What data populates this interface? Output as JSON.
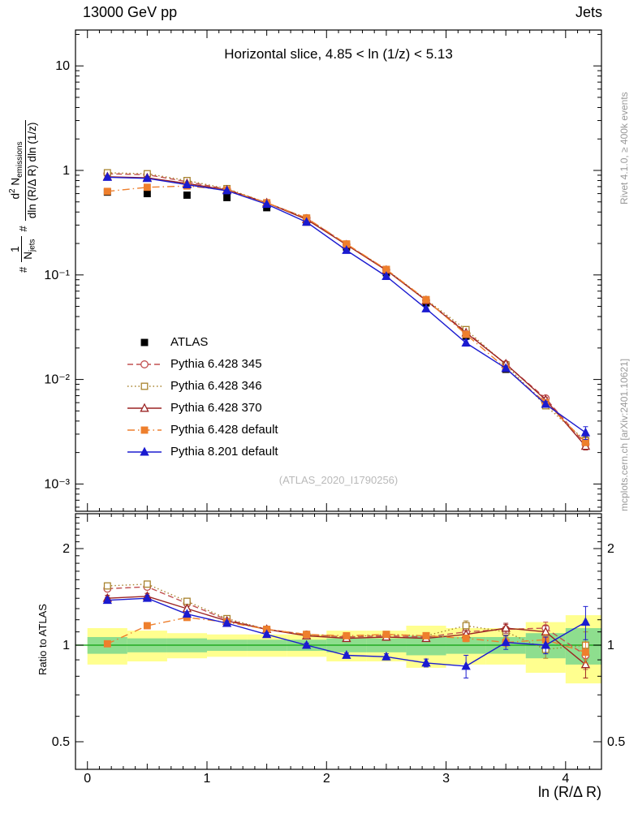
{
  "header": {
    "left": "13000 GeV pp",
    "right": "Jets"
  },
  "panel_title": "Horizontal slice, 4.85 < ln (1/z) < 5.13",
  "watermark": "(ATLAS_2020_I1790256)",
  "side_notes": {
    "rivet": "Rivet 4.1.0, ≥ 400k events",
    "mcplots": "mcplots.cern.ch [arXiv:2401.10621]"
  },
  "axis_labels": {
    "x": "ln (R/Δ R)",
    "ratio_y": "Ratio to ATLAS",
    "main_y": {
      "hash1": "#",
      "frac1_num": "1",
      "frac1_den_base": "N",
      "frac1_den_sub": "jets",
      "hash2": "#",
      "frac2_num_base": "d",
      "frac2_num_sup": "2",
      "frac2_num_base2": " N",
      "frac2_num_sub": "emissions",
      "frac2_den": "dln (R/Δ R) dln (1/z)"
    }
  },
  "chart_data": {
    "type": "line",
    "title": "Horizontal slice, 4.85 < ln (1/z) < 5.13",
    "xlabel": "ln (R/Δ R)",
    "ylabel": "1/N_jets d²N_emissions / (dln (R/Δ R) dln (1/z))",
    "ratio_ylabel": "Ratio to ATLAS",
    "y_scale": "log",
    "grid": false,
    "legend_position": "inside-middle-left",
    "x_range": [
      -0.1,
      4.3
    ],
    "y_range_main": [
      0.00055,
      22
    ],
    "y_range_ratio": [
      0.41,
      2.57
    ],
    "x": [
      0.167,
      0.5,
      0.833,
      1.167,
      1.5,
      1.833,
      2.167,
      2.5,
      2.833,
      3.167,
      3.5,
      3.833,
      4.167
    ],
    "xticks": [
      {
        "value": 0,
        "label": "0"
      },
      {
        "value": 1,
        "label": "1"
      },
      {
        "value": 2,
        "label": "2"
      },
      {
        "value": 3,
        "label": "3"
      },
      {
        "value": 4,
        "label": "4"
      }
    ],
    "yticks_main": [
      {
        "value": 10,
        "label": "10"
      },
      {
        "value": 1,
        "label": "1"
      },
      {
        "value": 0.1,
        "label": "10⁻¹"
      },
      {
        "value": 0.01,
        "label": "10⁻²"
      },
      {
        "value": 0.001,
        "label": "10⁻³"
      }
    ],
    "yticks_ratio": [
      {
        "value": 2,
        "label": "2"
      },
      {
        "value": 1,
        "label": "1"
      },
      {
        "value": 0.5,
        "label": "0.5"
      }
    ],
    "ratio_ticks_minor": [
      0.6,
      0.7,
      0.8,
      0.9,
      1.1,
      1.2,
      1.3,
      1.4,
      1.5,
      1.6,
      1.7,
      1.8,
      1.9,
      2.1,
      2.2,
      2.3,
      2.4,
      2.5
    ],
    "series": [
      {
        "name": "ATLAS",
        "marker": "square",
        "filled": true,
        "color": "#000000",
        "line": "none",
        "values": [
          0.62,
          0.6,
          0.58,
          0.55,
          0.44,
          0.32,
          0.185,
          0.105,
          0.054,
          0.026,
          0.0125,
          0.0058,
          0.0026
        ],
        "err_rel": [
          0.02,
          0.02,
          0.02,
          0.02,
          0.02,
          0.02,
          0.02,
          0.02,
          0.025,
          0.03,
          0.04,
          0.05,
          0.08
        ],
        "ratio": null,
        "ratio_err": null
      },
      {
        "name": "Pythia 6.428 345",
        "marker": "circle",
        "filled": false,
        "color": "#c25050",
        "line": "dashed",
        "values": [
          0.93,
          0.91,
          0.78,
          0.66,
          0.49,
          0.35,
          0.196,
          0.112,
          0.057,
          0.0286,
          0.014,
          0.0066,
          0.0024
        ],
        "err_rel": [
          0.03,
          0.03,
          0.02,
          0.02,
          0.015,
          0.015,
          0.015,
          0.02,
          0.02,
          0.03,
          0.04,
          0.05,
          0.09
        ],
        "ratio": [
          1.5,
          1.52,
          1.35,
          1.2,
          1.12,
          1.08,
          1.06,
          1.07,
          1.06,
          1.1,
          1.12,
          1.13,
          0.93
        ],
        "ratio_err": [
          0.03,
          0.03,
          0.02,
          0.02,
          0.015,
          0.015,
          0.015,
          0.02,
          0.02,
          0.03,
          0.04,
          0.05,
          0.09
        ]
      },
      {
        "name": "Pythia 6.428 346",
        "marker": "square",
        "filled": false,
        "color": "#a8832e",
        "line": "dotted",
        "values": [
          0.95,
          0.93,
          0.8,
          0.67,
          0.49,
          0.35,
          0.196,
          0.113,
          0.058,
          0.03,
          0.0138,
          0.0056,
          0.0026
        ],
        "err_rel": [
          0.03,
          0.03,
          0.02,
          0.02,
          0.015,
          0.015,
          0.015,
          0.02,
          0.02,
          0.04,
          0.04,
          0.06,
          0.1
        ],
        "ratio": [
          1.53,
          1.55,
          1.37,
          1.21,
          1.12,
          1.08,
          1.06,
          1.08,
          1.07,
          1.15,
          1.1,
          0.97,
          1.0
        ],
        "ratio_err": [
          0.03,
          0.03,
          0.02,
          0.02,
          0.015,
          0.015,
          0.015,
          0.02,
          0.02,
          0.04,
          0.04,
          0.06,
          0.1
        ]
      },
      {
        "name": "Pythia 6.428 370",
        "marker": "triangle",
        "filled": false,
        "color": "#9b2424",
        "line": "solid",
        "values": [
          0.87,
          0.85,
          0.75,
          0.65,
          0.49,
          0.34,
          0.194,
          0.111,
          0.057,
          0.028,
          0.0141,
          0.0064,
          0.0023
        ],
        "err_rel": [
          0.03,
          0.03,
          0.02,
          0.02,
          0.015,
          0.015,
          0.015,
          0.02,
          0.02,
          0.03,
          0.04,
          0.05,
          0.08
        ],
        "ratio": [
          1.4,
          1.42,
          1.3,
          1.19,
          1.12,
          1.07,
          1.05,
          1.06,
          1.05,
          1.08,
          1.13,
          1.1,
          0.87
        ],
        "ratio_err": [
          0.03,
          0.03,
          0.02,
          0.02,
          0.015,
          0.015,
          0.015,
          0.02,
          0.02,
          0.03,
          0.04,
          0.05,
          0.08
        ]
      },
      {
        "name": "Pythia 6.428 default",
        "marker": "square",
        "filled": true,
        "color": "#ee7f2d",
        "line": "dashdot",
        "values": [
          0.63,
          0.69,
          0.71,
          0.65,
          0.49,
          0.35,
          0.198,
          0.113,
          0.058,
          0.027,
          0.0128,
          0.006,
          0.0025
        ],
        "err_rel": [
          0.02,
          0.02,
          0.02,
          0.015,
          0.015,
          0.015,
          0.015,
          0.015,
          0.02,
          0.025,
          0.03,
          0.04,
          0.07
        ],
        "ratio": [
          1.01,
          1.15,
          1.22,
          1.18,
          1.12,
          1.08,
          1.07,
          1.08,
          1.07,
          1.05,
          1.02,
          1.04,
          0.95
        ],
        "ratio_err": [
          0.02,
          0.02,
          0.02,
          0.015,
          0.015,
          0.015,
          0.015,
          0.015,
          0.02,
          0.025,
          0.03,
          0.04,
          0.07
        ]
      },
      {
        "name": "Pythia 8.201 default",
        "marker": "triangle",
        "filled": true,
        "color": "#1b1bd0",
        "line": "solid",
        "values": [
          0.86,
          0.84,
          0.73,
          0.64,
          0.475,
          0.32,
          0.172,
          0.097,
          0.0475,
          0.0224,
          0.0128,
          0.0058,
          0.0031
        ],
        "err_rel": [
          0.03,
          0.03,
          0.02,
          0.02,
          0.015,
          0.015,
          0.015,
          0.02,
          0.025,
          0.07,
          0.05,
          0.06,
          0.14
        ],
        "ratio": [
          1.38,
          1.4,
          1.25,
          1.17,
          1.08,
          1.0,
          0.93,
          0.92,
          0.88,
          0.86,
          1.02,
          1.0,
          1.18
        ],
        "ratio_err": [
          0.03,
          0.03,
          0.02,
          0.02,
          0.015,
          0.015,
          0.015,
          0.02,
          0.025,
          0.07,
          0.05,
          0.06,
          0.14
        ]
      }
    ],
    "bands": {
      "edges": [
        0,
        0.3333,
        0.6667,
        1.0,
        1.3333,
        1.6667,
        2.0,
        2.3333,
        2.6667,
        3.0,
        3.3333,
        3.6667,
        4.0,
        4.3333
      ],
      "yellow": [
        0.13,
        0.11,
        0.09,
        0.08,
        0.08,
        0.08,
        0.11,
        0.11,
        0.15,
        0.13,
        0.13,
        0.18,
        0.24
      ],
      "green": [
        0.06,
        0.05,
        0.05,
        0.04,
        0.04,
        0.04,
        0.05,
        0.05,
        0.07,
        0.06,
        0.06,
        0.09,
        0.13
      ]
    },
    "style": {
      "yellow_band": "#ffff8f",
      "green_band": "#8ede8e",
      "green_line": "#22aa22",
      "frame": "#000000"
    }
  }
}
